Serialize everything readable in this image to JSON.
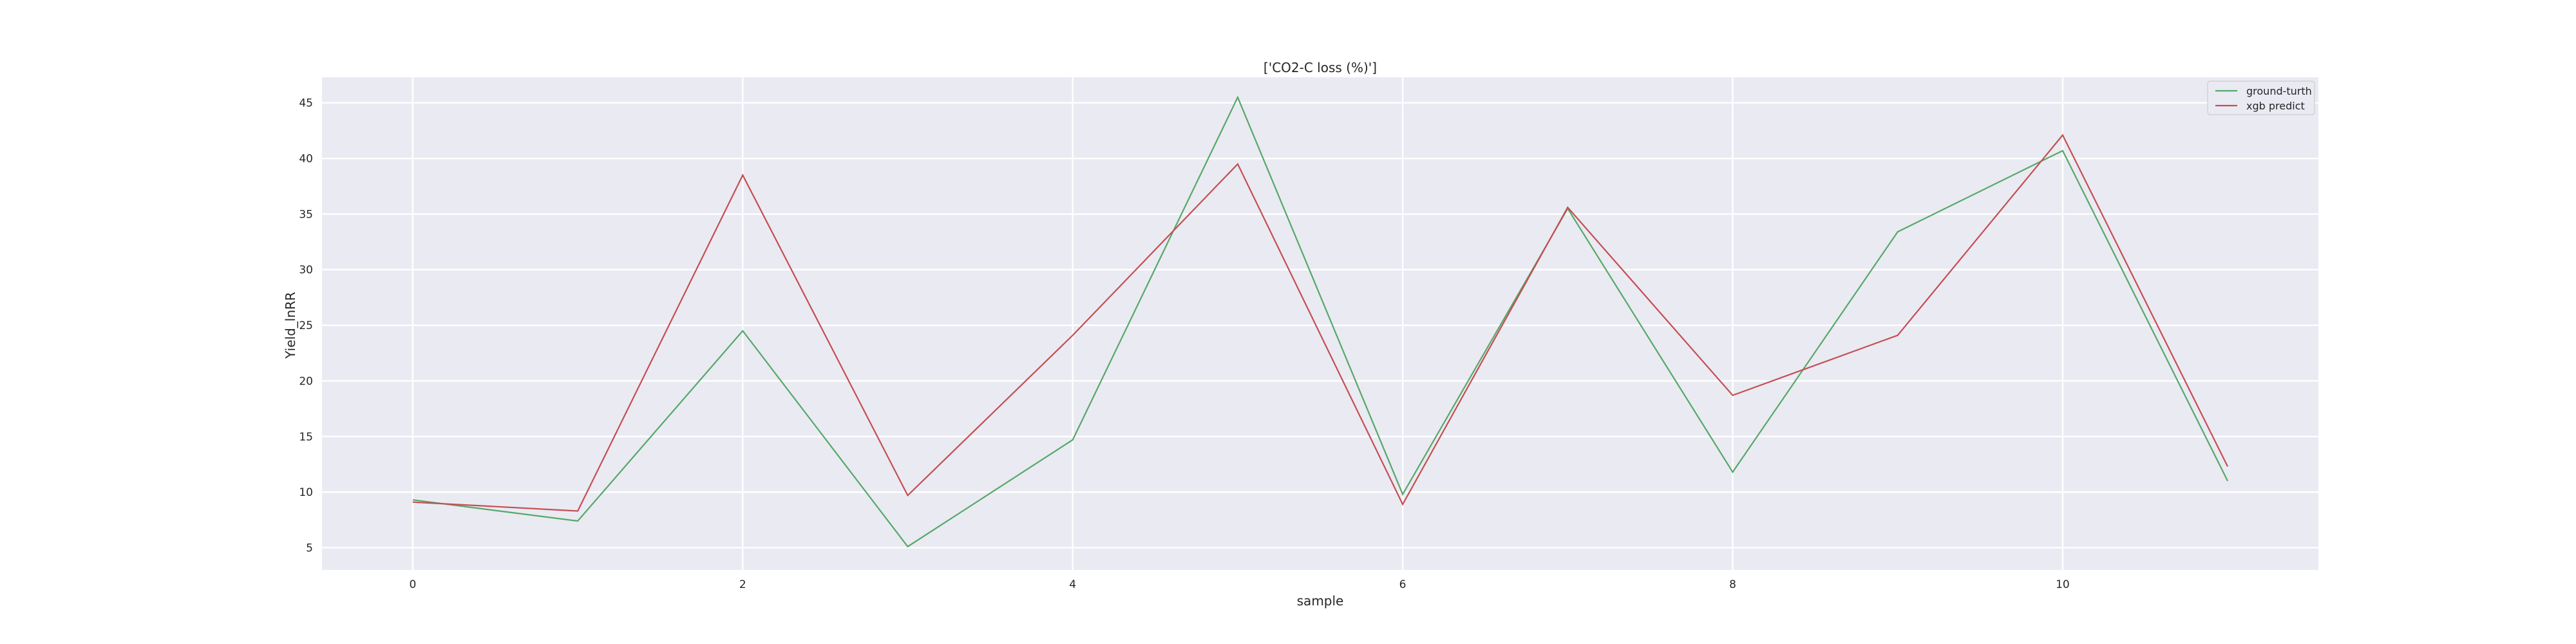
{
  "chart_data": {
    "type": "line",
    "title": "['CO2-C loss (%)']",
    "xlabel": "sample",
    "ylabel": "Yield_lnRR",
    "x": [
      0,
      1,
      2,
      3,
      4,
      5,
      6,
      7,
      8,
      9,
      10,
      11
    ],
    "xlim": [
      -0.55,
      11.55
    ],
    "ylim": [
      3.0,
      47.3
    ],
    "xticks": [
      0,
      2,
      4,
      6,
      8,
      10
    ],
    "yticks": [
      5,
      10,
      15,
      20,
      25,
      30,
      35,
      40,
      45
    ],
    "grid": true,
    "legend_position": "top-right",
    "series": [
      {
        "name": "ground-turth",
        "color": "#55a868",
        "values": [
          9.3,
          7.4,
          24.5,
          5.1,
          14.7,
          45.5,
          9.8,
          35.5,
          11.8,
          33.4,
          40.7,
          11.0
        ]
      },
      {
        "name": "xgb predict",
        "color": "#c44e52",
        "values": [
          9.1,
          8.3,
          38.5,
          9.7,
          24.1,
          39.5,
          8.9,
          35.6,
          18.7,
          24.1,
          42.1,
          12.3
        ]
      }
    ]
  }
}
